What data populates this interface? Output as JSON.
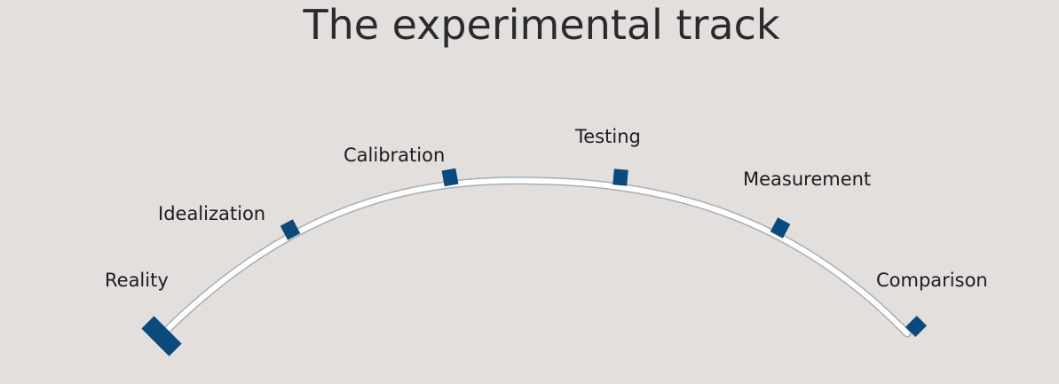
{
  "title": "The experimental track",
  "colors": {
    "background": "#e3dfdc",
    "marker": "#0b4a7c",
    "track_fill": "#ffffff",
    "track_edge": "#a9adb3",
    "title": "#2a2a2e"
  },
  "stages": [
    {
      "label": "Reality",
      "order": 1,
      "marker_size": "large"
    },
    {
      "label": "Idealization",
      "order": 2,
      "marker_size": "small"
    },
    {
      "label": "Calibration",
      "order": 3,
      "marker_size": "small"
    },
    {
      "label": "Testing",
      "order": 4,
      "marker_size": "small"
    },
    {
      "label": "Measurement",
      "order": 5,
      "marker_size": "small"
    },
    {
      "label": "Comparison",
      "order": 6,
      "marker_size": "small"
    }
  ]
}
